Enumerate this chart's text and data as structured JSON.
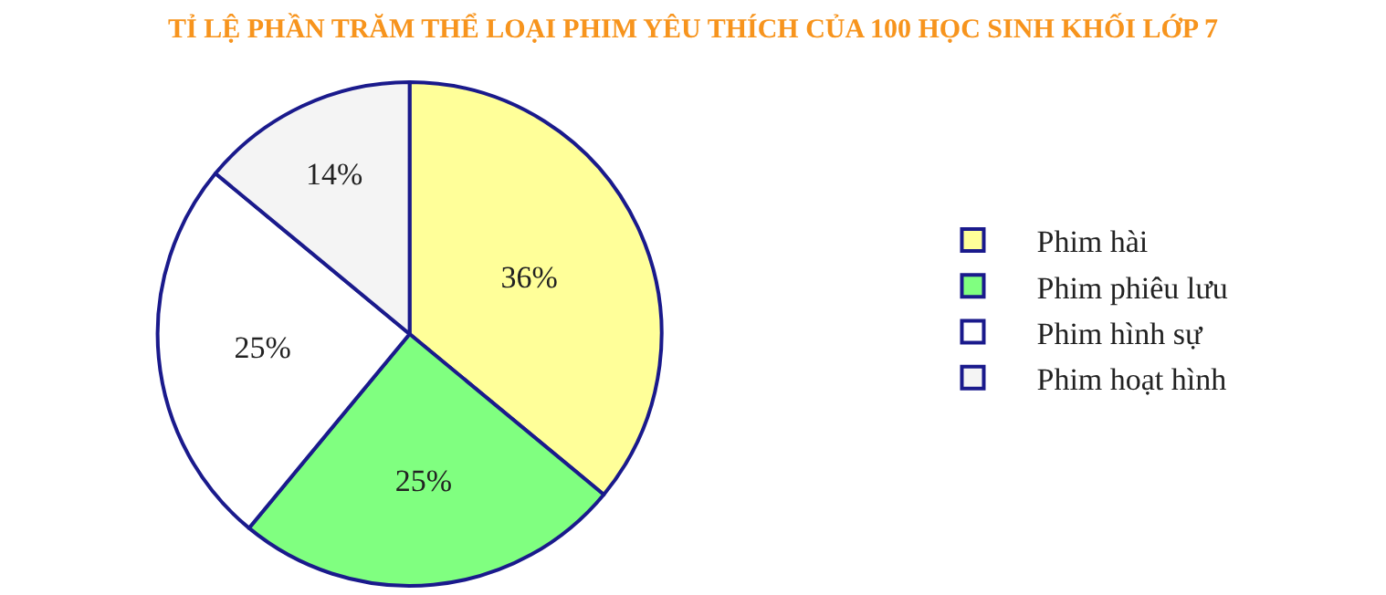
{
  "chart_data": {
    "type": "pie",
    "title": "TỈ LỆ PHẦN TRĂM THỂ LOẠI PHIM YÊU THÍCH CỦA 100 HỌC SINH KHỐI LỚP 7",
    "categories": [
      "Phim hài",
      "Phim phiêu lưu",
      "Phim hình sự",
      "Phim hoạt hình"
    ],
    "values": [
      36,
      25,
      25,
      14
    ],
    "value_labels": [
      "36%",
      "25%",
      "25%",
      "14%"
    ],
    "colors": [
      "#ffff99",
      "#80ff80",
      "#ffffff",
      "#f4f4f4"
    ],
    "legend": "right"
  }
}
